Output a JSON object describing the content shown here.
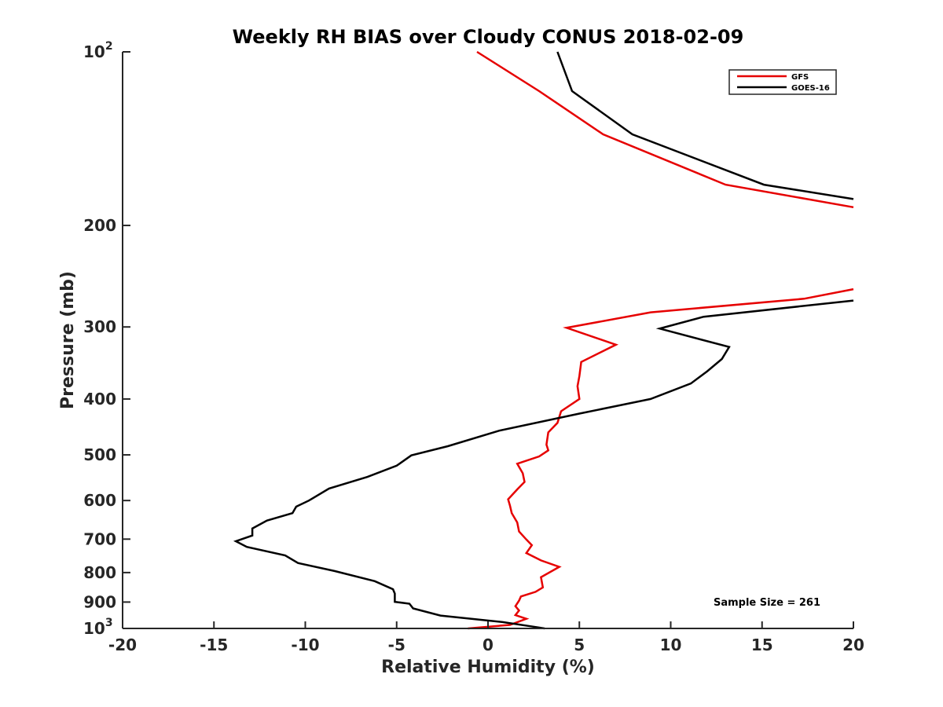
{
  "chart_data": {
    "type": "line",
    "title": "Weekly RH BIAS over Cloudy CONUS 2018-02-09",
    "xlabel": "Relative Humidity (%)",
    "ylabel": "Pressure (mb)",
    "xlim": [
      -20,
      20
    ],
    "ylim": [
      100,
      1000
    ],
    "y_scale": "log",
    "y_reversed": true,
    "grid": false,
    "legend_position": "top-right",
    "x_ticks": [
      -20,
      -15,
      -10,
      -5,
      0,
      5,
      10,
      15,
      20
    ],
    "x_tick_labels": [
      "-20",
      "-15",
      "-10",
      "-5",
      "0",
      "5",
      "10",
      "15",
      "20"
    ],
    "y_ticks": [
      100,
      200,
      300,
      400,
      500,
      600,
      700,
      800,
      900,
      1000
    ],
    "y_tick_labels": [
      {
        "base": "10",
        "sup": "2"
      },
      {
        "base": "200",
        "sup": ""
      },
      {
        "base": "300",
        "sup": ""
      },
      {
        "base": "400",
        "sup": ""
      },
      {
        "base": "500",
        "sup": ""
      },
      {
        "base": "600",
        "sup": ""
      },
      {
        "base": "700",
        "sup": ""
      },
      {
        "base": "800",
        "sup": ""
      },
      {
        "base": "900",
        "sup": ""
      },
      {
        "base": "10",
        "sup": "3"
      }
    ],
    "series": [
      {
        "name": "GFS",
        "color": "#e60000",
        "segments": [
          {
            "x": [
              -0.6,
              2.8,
              6.3,
              13.0,
              20.0
            ],
            "y": [
              100,
              117,
              139,
              170,
              186
            ]
          },
          {
            "x": [
              20.0,
              17.3,
              8.9,
              4.3,
              7.0,
              5.1,
              5.0,
              4.9,
              5.0,
              4.0,
              3.8,
              3.3,
              3.2,
              3.3,
              2.8,
              1.6,
              1.9,
              2.0,
              1.6,
              1.1,
              1.2,
              1.3,
              1.6,
              1.7,
              2.1,
              2.4,
              2.1,
              2.9,
              3.9,
              2.9,
              3.0,
              2.6,
              1.8,
              1.7,
              1.5,
              1.7,
              1.5,
              2.1,
              1.2,
              -1.1
            ],
            "y": [
              258,
              268,
              283,
              301,
              322,
              345,
              365,
              380,
              400,
              420,
              440,
              457,
              480,
              491,
              503,
              518,
              538,
              557,
              574,
              597,
              612,
              631,
              655,
              679,
              701,
              717,
              740,
              762,
              782,
              815,
              849,
              864,
              880,
              895,
              915,
              931,
              948,
              962,
              986,
              1000
            ]
          }
        ]
      },
      {
        "name": "GOES-16",
        "color": "#000000",
        "segments": [
          {
            "x": [
              3.8,
              4.6,
              7.9,
              15.1,
              20.0
            ],
            "y": [
              100,
              117,
              139,
              170,
              180
            ]
          },
          {
            "x": [
              20.0,
              11.8,
              9.4,
              13.2,
              12.8,
              12.0,
              11.1,
              8.9,
              5.0,
              0.6,
              -2.2,
              -4.2,
              -5.0,
              -6.6,
              -8.7,
              -9.8,
              -10.5,
              -10.7,
              -12.1,
              -12.9,
              -12.9,
              -13.8,
              -13.2,
              -11.1,
              -10.4,
              -8.4,
              -6.2,
              -5.2,
              -5.1,
              -5.1,
              -4.3,
              -4.1,
              -2.6,
              0.8,
              2.5,
              3.1
            ],
            "y": [
              270,
              288,
              302,
              325,
              341,
              358,
              376,
              400,
              424,
              454,
              483,
              501,
              522,
              546,
              572,
              600,
              615,
              631,
              650,
              671,
              690,
              706,
              722,
              747,
              770,
              795,
              828,
              855,
              870,
              899,
              906,
              923,
              950,
              975,
              993,
              1000
            ]
          }
        ]
      }
    ],
    "annotations": [
      "Sample Size = 261"
    ]
  }
}
